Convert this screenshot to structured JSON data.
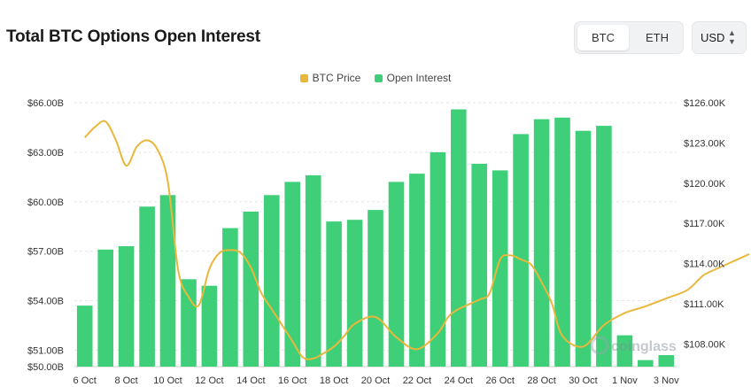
{
  "header": {
    "title": "Total BTC Options Open Interest"
  },
  "asset_toggle": {
    "btc_label": "BTC",
    "eth_label": "ETH",
    "active": "BTC"
  },
  "currency_select": {
    "value": "USD"
  },
  "watermark": "coinglass",
  "chart_data": {
    "type": "bar",
    "title": "Total BTC Options Open Interest",
    "legend": [
      {
        "name": "BTC Price",
        "color": "#e8b73c"
      },
      {
        "name": "Open Interest",
        "color": "#3ecf78"
      }
    ],
    "x_tick_labels": [
      "6 Oct",
      "8 Oct",
      "10 Oct",
      "12 Oct",
      "14 Oct",
      "16 Oct",
      "18 Oct",
      "20 Oct",
      "22 Oct",
      "24 Oct",
      "26 Oct",
      "28 Oct",
      "30 Oct",
      "1 Nov",
      "3 Nov"
    ],
    "y_left": {
      "ticks": [
        "$50.00B",
        "$51.00B",
        "$54.00B",
        "$57.00B",
        "$60.00B",
        "$63.00B",
        "$66.00B"
      ],
      "tick_values": [
        50,
        51,
        54,
        57,
        60,
        63,
        66
      ],
      "ylim": [
        50,
        66
      ]
    },
    "y_right": {
      "ticks": [
        "$108.00K",
        "$111.00K",
        "$114.00K",
        "$117.00K",
        "$120.00K",
        "$123.00K",
        "$126.00K"
      ],
      "tick_values": [
        108,
        111,
        114,
        117,
        120,
        123,
        126
      ],
      "ylim": [
        106.3,
        126
      ]
    },
    "series": [
      {
        "name": "Open Interest",
        "type": "bar",
        "axis": "left",
        "unit": "$B",
        "categories": [
          "6 Oct",
          "7 Oct",
          "8 Oct",
          "9 Oct",
          "10 Oct",
          "11 Oct",
          "12 Oct",
          "13 Oct",
          "14 Oct",
          "15 Oct",
          "16 Oct",
          "17 Oct",
          "18 Oct",
          "19 Oct",
          "20 Oct",
          "21 Oct",
          "22 Oct",
          "23 Oct",
          "24 Oct",
          "25 Oct",
          "26 Oct",
          "27 Oct",
          "28 Oct",
          "29 Oct",
          "30 Oct",
          "31 Oct",
          "1 Nov",
          "2 Nov",
          "3 Nov"
        ],
        "values": [
          53.7,
          57.1,
          57.3,
          59.7,
          60.4,
          55.3,
          54.9,
          58.4,
          59.4,
          60.4,
          61.2,
          61.6,
          58.8,
          58.9,
          59.5,
          61.2,
          61.7,
          63.0,
          65.6,
          62.3,
          61.9,
          64.1,
          65.0,
          65.1,
          64.3,
          64.6,
          51.9,
          50.4,
          50.7
        ]
      },
      {
        "name": "BTC Price",
        "type": "line",
        "axis": "right",
        "unit": "$K",
        "x": [
          0,
          0.5,
          1,
          1.5,
          2,
          2.5,
          3,
          3.5,
          4,
          4.5,
          5,
          5.5,
          6,
          6.5,
          7,
          7.5,
          8,
          8.5,
          9,
          9.5,
          10,
          10.5,
          11,
          11.5,
          12,
          12.5,
          13,
          14,
          15,
          16,
          17,
          17.5,
          18,
          19,
          19.5,
          20,
          20.5,
          21,
          21.5,
          22,
          22.5,
          23,
          24,
          25,
          26,
          27,
          28,
          29,
          29.7,
          30,
          31,
          32
        ],
        "values": [
          123.4,
          124.2,
          124.6,
          123.2,
          121.3,
          122.7,
          123.2,
          122.5,
          120.1,
          113.5,
          111.5,
          110.9,
          113.6,
          114.8,
          115.0,
          114.8,
          113.7,
          111.8,
          110.6,
          109.4,
          108.2,
          107.0,
          106.9,
          107.3,
          107.8,
          108.6,
          109.5,
          110.0,
          108.5,
          107.6,
          108.8,
          110.0,
          110.6,
          111.3,
          111.8,
          114.3,
          114.6,
          114.3,
          113.9,
          112.6,
          111.0,
          108.6,
          107.8,
          109.4,
          110.3,
          110.8,
          111.4,
          112.0,
          113.0,
          113.3,
          114.0,
          114.7
        ]
      }
    ]
  }
}
